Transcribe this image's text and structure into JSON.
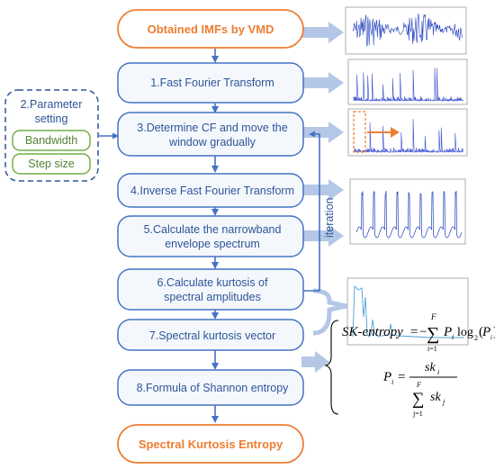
{
  "colors": {
    "blue_border": "#4472c4",
    "step_fill": "#f4f8fd",
    "orange": "#ed7d31",
    "green": "#70ad47",
    "text_blue": "#2f5597",
    "fat_arrow": "#b4c7e7",
    "signal_blue": "#1f3fbf"
  },
  "start": "Obtained IMFs by VMD",
  "steps": [
    "1.Fast Fourier Transform",
    [
      "3.Determine CF and move the",
      "window gradually"
    ],
    "4.Inverse Fast Fourier Transform",
    [
      "5.Calculate the narrowband",
      "envelope spectrum"
    ],
    [
      "6.Calculate kurtosis of",
      "spectral amplitudes"
    ],
    "7.Spectral kurtosis vector",
    "8.Formula of Shannon entropy"
  ],
  "end": "Spectral Kurtosis Entropy",
  "parameter_box": {
    "title": [
      "2.Parameter",
      "setting"
    ],
    "items": [
      "Bandwidth",
      "Step size"
    ]
  },
  "iteration_label": "iteration",
  "formula": {
    "line1_lhs": "SK-entropy",
    "eq": "=",
    "minus": "−",
    "sum": "∑",
    "upper_F": "F",
    "lower_i1": "i=1",
    "P": "P",
    "sub_i": "i",
    "log": "log",
    "log_base": "2",
    "paren_open": "(",
    "paren_close": ")",
    "numerator": "sk",
    "den_sk": "sk",
    "sub_j": "j",
    "lower_j1": "j=1"
  }
}
